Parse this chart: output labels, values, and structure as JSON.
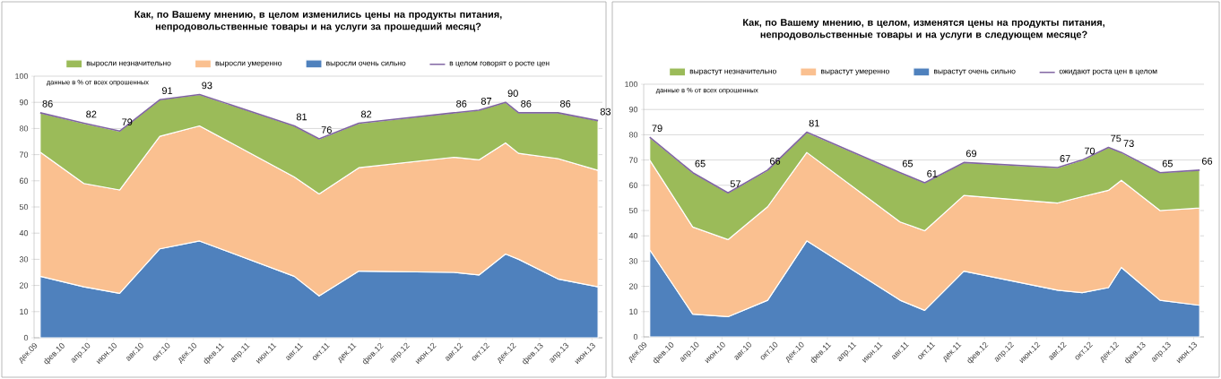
{
  "chart_data": [
    {
      "type": "area",
      "title": "Как, по Вашему мнению, в целом изменились цены  на продукты питания, непродовольственные товары  и на услуги за прошедший месяц?",
      "stacked": true,
      "legend": "top",
      "grid": "y",
      "annotations": [
        "данные в % от всех опрошенных"
      ],
      "x": [
        "2009-12-15",
        "2010-03-25",
        "2010-06-15",
        "2010-09-15",
        "2010-12-15",
        "2011-07-20",
        "2011-09-15",
        "2011-12-15",
        "2012-07-20",
        "2012-09-15",
        "2012-11-15",
        "2012-12-15",
        "2013-03-15",
        "2013-06-15"
      ],
      "xlim": [
        "2009-12-01",
        "2013-06-25"
      ],
      "xticks": [
        {
          "value": "2009-12-01",
          "label": "дек.09"
        },
        {
          "value": "2010-02-01",
          "label": "фев.10"
        },
        {
          "value": "2010-04-01",
          "label": "апр.10"
        },
        {
          "value": "2010-06-01",
          "label": "июн.10"
        },
        {
          "value": "2010-08-01",
          "label": "авг.10"
        },
        {
          "value": "2010-10-01",
          "label": "окт.10"
        },
        {
          "value": "2010-12-01",
          "label": "дек.10"
        },
        {
          "value": "2011-02-01",
          "label": "фев.11"
        },
        {
          "value": "2011-04-01",
          "label": "апр.11"
        },
        {
          "value": "2011-06-01",
          "label": "июн.11"
        },
        {
          "value": "2011-08-01",
          "label": "авг.11"
        },
        {
          "value": "2011-10-01",
          "label": "окт.11"
        },
        {
          "value": "2011-12-01",
          "label": "дек.11"
        },
        {
          "value": "2012-02-01",
          "label": "фев.12"
        },
        {
          "value": "2012-04-01",
          "label": "апр.12"
        },
        {
          "value": "2012-06-01",
          "label": "июн.12"
        },
        {
          "value": "2012-08-01",
          "label": "авг.12"
        },
        {
          "value": "2012-10-01",
          "label": "окт.12"
        },
        {
          "value": "2012-12-01",
          "label": "дек.12"
        },
        {
          "value": "2013-02-01",
          "label": "фев.13"
        },
        {
          "value": "2013-04-01",
          "label": "апр.13"
        },
        {
          "value": "2013-06-01",
          "label": "июн.13"
        }
      ],
      "ylim": [
        0,
        100
      ],
      "yticks": [
        0,
        10,
        20,
        30,
        40,
        50,
        60,
        70,
        80,
        90,
        100
      ],
      "series": [
        {
          "name": "выросли очень сильно",
          "color": "#4f81bd",
          "values": [
            23.5,
            19.5,
            17,
            34,
            37,
            23.5,
            16,
            25.5,
            25,
            24,
            32,
            30,
            22.5,
            19.5
          ]
        },
        {
          "name": "выросли умеренно",
          "color": "#fac090",
          "values": [
            47.5,
            39.5,
            39.5,
            43,
            44,
            38,
            39,
            39.5,
            44,
            44,
            42.5,
            40.5,
            46,
            44.5
          ]
        },
        {
          "name": "выросли незначительно",
          "color": "#9bbb59",
          "values": [
            15,
            23,
            22.5,
            14,
            12,
            19.5,
            21,
            17,
            17,
            19,
            15.5,
            15.5,
            17.5,
            19
          ]
        },
        {
          "name": "в целом говорят о росте цен",
          "type": "line",
          "color": "#8064a2",
          "values": [
            86,
            82,
            79,
            91,
            93,
            81,
            76,
            82,
            86,
            87,
            90,
            86,
            86,
            83
          ],
          "value_labels": [
            "86",
            "82",
            "79",
            "91",
            "93",
            "81",
            "76",
            "82",
            "86",
            "87",
            "90",
            "86",
            "86",
            "83"
          ]
        }
      ]
    },
    {
      "type": "area",
      "title": "Как, по Вашему мнению, в целом, изменятся цены  на продукты питания, непродовольственные товары  и на услуги в следующем месяце?",
      "stacked": true,
      "legend": "top",
      "grid": "y",
      "annotations": [
        "данные в % от всех опрошенных"
      ],
      "x": [
        "2009-12-15",
        "2010-03-25",
        "2010-06-15",
        "2010-09-15",
        "2010-12-15",
        "2011-07-20",
        "2011-09-15",
        "2011-12-15",
        "2012-07-20",
        "2012-09-15",
        "2012-11-15",
        "2012-12-15",
        "2013-03-15",
        "2013-06-15"
      ],
      "xlim": [
        "2009-12-01",
        "2013-06-25"
      ],
      "xticks": [
        {
          "value": "2009-12-01",
          "label": "дек.09"
        },
        {
          "value": "2010-02-01",
          "label": "фев.10"
        },
        {
          "value": "2010-04-01",
          "label": "апр.10"
        },
        {
          "value": "2010-06-01",
          "label": "июн.10"
        },
        {
          "value": "2010-08-01",
          "label": "авг.10"
        },
        {
          "value": "2010-10-01",
          "label": "окт.10"
        },
        {
          "value": "2010-12-01",
          "label": "дек.10"
        },
        {
          "value": "2011-02-01",
          "label": "фев.11"
        },
        {
          "value": "2011-04-01",
          "label": "апр.11"
        },
        {
          "value": "2011-06-01",
          "label": "июн.11"
        },
        {
          "value": "2011-08-01",
          "label": "авг.11"
        },
        {
          "value": "2011-10-01",
          "label": "окт.11"
        },
        {
          "value": "2011-12-01",
          "label": "дек.11"
        },
        {
          "value": "2012-02-01",
          "label": "фев.12"
        },
        {
          "value": "2012-04-01",
          "label": "апр.12"
        },
        {
          "value": "2012-06-01",
          "label": "июн.12"
        },
        {
          "value": "2012-08-01",
          "label": "авг.12"
        },
        {
          "value": "2012-10-01",
          "label": "окт.12"
        },
        {
          "value": "2012-12-01",
          "label": "дек.12"
        },
        {
          "value": "2013-02-01",
          "label": "фев.13"
        },
        {
          "value": "2013-04-01",
          "label": "апр.13"
        },
        {
          "value": "2013-06-01",
          "label": "июн.13"
        }
      ],
      "ylim": [
        0,
        100
      ],
      "yticks": [
        0,
        10,
        20,
        30,
        40,
        50,
        60,
        70,
        80,
        90,
        100
      ],
      "series": [
        {
          "name": "вырастут очень сильно",
          "color": "#4f81bd",
          "values": [
            34.5,
            9,
            8,
            14.5,
            38,
            14.5,
            10.5,
            26,
            18.5,
            17.5,
            19.5,
            27.5,
            14.5,
            12.5
          ]
        },
        {
          "name": "вырастут умеренно",
          "color": "#fac090",
          "values": [
            35.5,
            34.5,
            30.5,
            37,
            35,
            31,
            31.5,
            30,
            34.5,
            38,
            38.5,
            34.5,
            35.5,
            38.5
          ]
        },
        {
          "name": "вырастут незначительно",
          "color": "#9bbb59",
          "values": [
            9,
            21.5,
            18.5,
            14.5,
            8,
            19.5,
            19,
            13,
            14,
            14.5,
            17,
            11,
            15,
            15
          ]
        },
        {
          "name": "ожидают роста  цен в целом",
          "type": "line",
          "color": "#8064a2",
          "values": [
            79,
            65,
            57,
            66,
            81,
            65,
            61,
            69,
            67,
            70,
            75,
            73,
            65,
            66
          ],
          "value_labels": [
            "79",
            "65",
            "57",
            "66",
            "81",
            "65",
            "61",
            "69",
            "67",
            "70",
            "75",
            "73",
            "65",
            "66"
          ]
        }
      ]
    }
  ]
}
